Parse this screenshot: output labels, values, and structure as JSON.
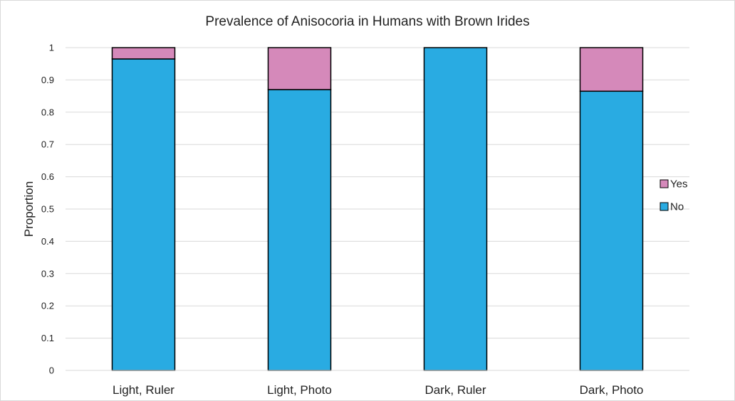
{
  "chart_data": {
    "type": "bar",
    "stacked": true,
    "title": "Prevalence of Anisocoria in Humans with Brown Irides",
    "xlabel": "",
    "ylabel": "Proportion",
    "ylim": [
      0,
      1
    ],
    "yticks": [
      "0",
      "0.1",
      "0.2",
      "0.3",
      "0.4",
      "0.5",
      "0.6",
      "0.7",
      "0.8",
      "0.9",
      "1"
    ],
    "categories": [
      "Light, Ruler",
      "Light, Photo",
      "Dark, Ruler",
      "Dark, Photo"
    ],
    "series": [
      {
        "name": "No",
        "values": [
          0.965,
          0.87,
          1.0,
          0.865
        ],
        "color": "#29abe2"
      },
      {
        "name": "Yes",
        "values": [
          0.035,
          0.13,
          0.0,
          0.135
        ],
        "color": "#d589ba"
      }
    ],
    "legend": [
      "Yes",
      "No"
    ],
    "legend_position": "right",
    "grid": true
  }
}
